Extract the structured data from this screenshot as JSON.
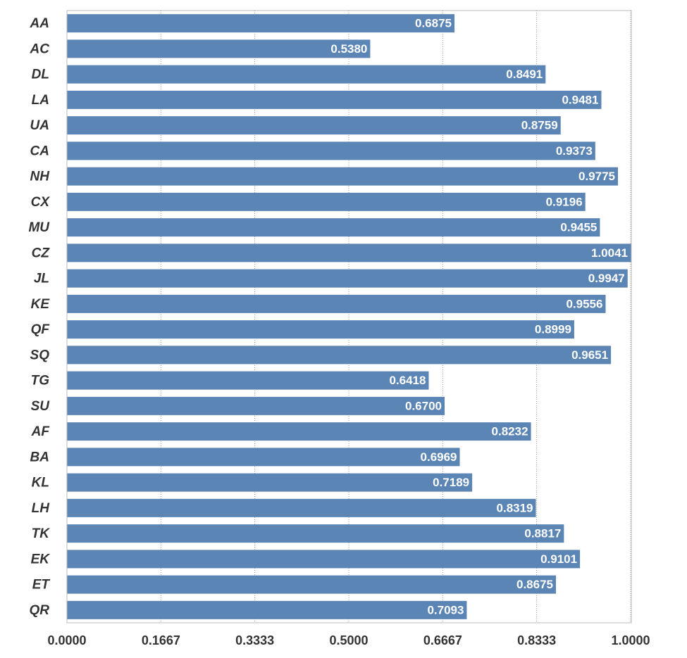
{
  "chart_data": {
    "type": "barh",
    "categories": [
      "AA",
      "AC",
      "DL",
      "LA",
      "UA",
      "CA",
      "NH",
      "CX",
      "MU",
      "CZ",
      "JL",
      "KE",
      "QF",
      "SQ",
      "TG",
      "SU",
      "AF",
      "BA",
      "KL",
      "LH",
      "TK",
      "EK",
      "ET",
      "QR"
    ],
    "values": [
      0.6875,
      0.538,
      0.8491,
      0.9481,
      0.8759,
      0.9373,
      0.9775,
      0.9196,
      0.9455,
      1.0041,
      0.9947,
      0.9556,
      0.8999,
      0.9651,
      0.6418,
      0.67,
      0.8232,
      0.6969,
      0.7189,
      0.8319,
      0.8817,
      0.9101,
      0.8675,
      0.7093
    ],
    "value_labels": [
      "0.6875",
      "0.5380",
      "0.8491",
      "0.9481",
      "0.8759",
      "0.9373",
      "0.9775",
      "0.9196",
      "0.9455",
      "1.0041",
      "0.9947",
      "0.9556",
      "0.8999",
      "0.9651",
      "0.6418",
      "0.6700",
      "0.8232",
      "0.6969",
      "0.7189",
      "0.8319",
      "0.8817",
      "0.9101",
      "0.8675",
      "0.7093"
    ],
    "color": "#5b85b5",
    "xlim": [
      0,
      1
    ],
    "xticks": [
      {
        "value": 0,
        "label": "0.0000"
      },
      {
        "value": 0.1667,
        "label": "0.1667"
      },
      {
        "value": 0.3333,
        "label": "0.3333"
      },
      {
        "value": 0.5,
        "label": "0.5000"
      },
      {
        "value": 0.6667,
        "label": "0.6667"
      },
      {
        "value": 0.8333,
        "label": "0.8333"
      },
      {
        "value": 1,
        "label": "1.0000"
      }
    ],
    "grid": true
  }
}
